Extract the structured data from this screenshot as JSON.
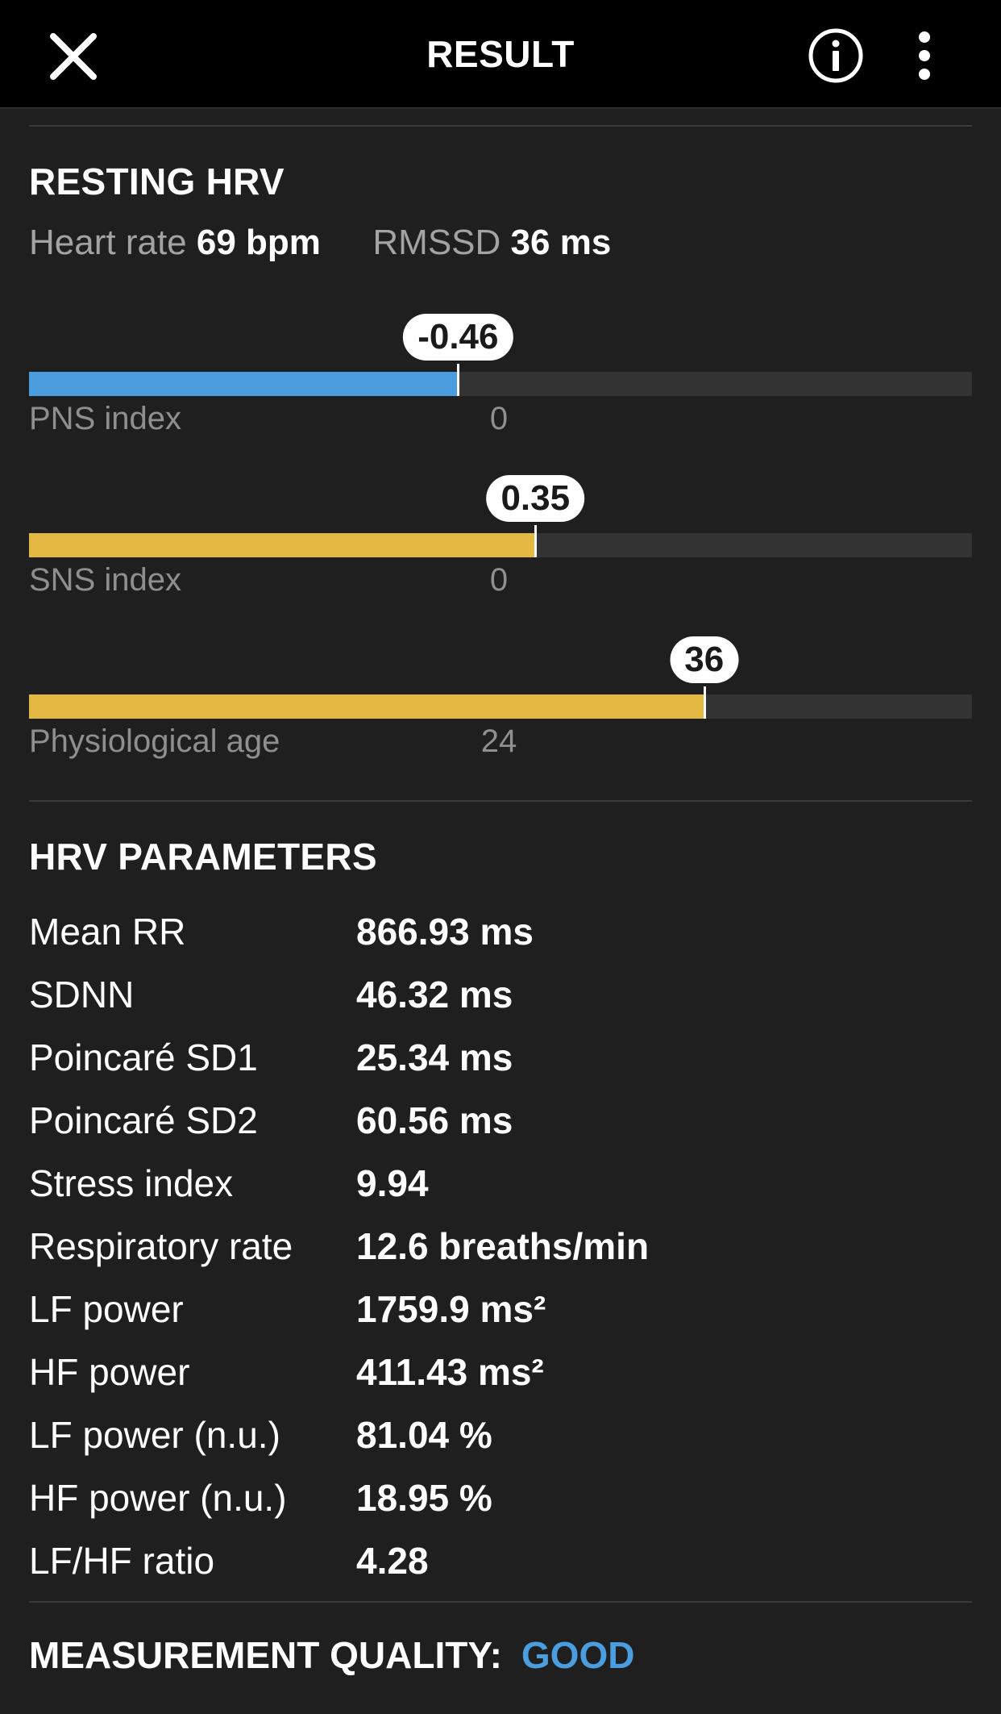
{
  "header": {
    "title": "RESULT"
  },
  "resting": {
    "title": "RESTING HRV",
    "heart_rate_label": "Heart rate",
    "heart_rate_value": "69 bpm",
    "rmssd_label": "RMSSD",
    "rmssd_value": "36 ms"
  },
  "gauges": [
    {
      "label": "PNS index",
      "value": "-0.46",
      "reference": "0",
      "fill_percent": 45.5,
      "color": "#4a9ee0"
    },
    {
      "label": "SNS index",
      "value": "0.35",
      "reference": "0",
      "fill_percent": 53.7,
      "color": "#e3b843"
    },
    {
      "label": "Physiological age",
      "value": "36",
      "reference": "24",
      "fill_percent": 71.6,
      "color": "#e3b843"
    }
  ],
  "parameters": {
    "title": "HRV PARAMETERS",
    "rows": [
      {
        "name": "Mean RR",
        "value": "866.93 ms"
      },
      {
        "name": "SDNN",
        "value": "46.32 ms"
      },
      {
        "name": "Poincaré SD1",
        "value": "25.34 ms"
      },
      {
        "name": "Poincaré SD2",
        "value": "60.56 ms"
      },
      {
        "name": "Stress index",
        "value": "9.94"
      },
      {
        "name": "Respiratory rate",
        "value": "12.6 breaths/min"
      },
      {
        "name": "LF power",
        "value": "1759.9 ms²"
      },
      {
        "name": "HF power",
        "value": "411.43 ms²"
      },
      {
        "name": "LF power (n.u.)",
        "value": "81.04 %"
      },
      {
        "name": "HF power (n.u.)",
        "value": "18.95 %"
      },
      {
        "name": "LF/HF ratio",
        "value": "4.28"
      }
    ]
  },
  "quality": {
    "label": "MEASUREMENT QUALITY:",
    "value": "GOOD"
  }
}
